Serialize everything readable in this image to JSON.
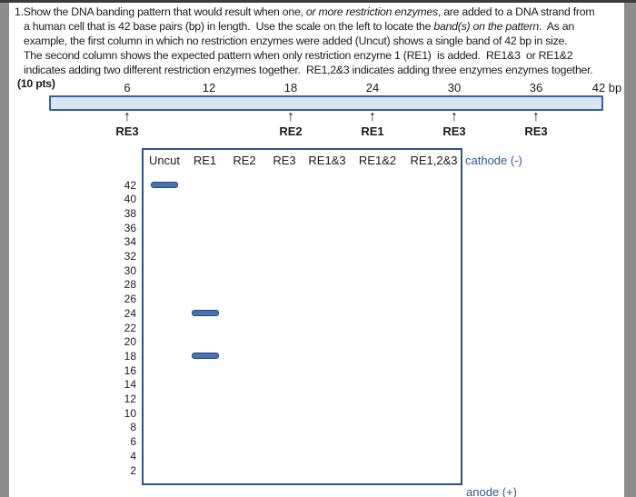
{
  "document": {
    "paragraph_lines": [
      {
        "segments": [
          {
            "text": "1.Show the DNA banding pattern that would result when one, "
          },
          {
            "text": "or more restriction enzymes",
            "italic": true
          },
          {
            "text": ", are added to a DNA strand from"
          }
        ]
      },
      {
        "segments": [
          {
            "text": "a human cell that is 42 base pairs (bp) in length.  Use the scale on the left to locate the "
          },
          {
            "text": "band(s) on the pattern",
            "italic": true
          },
          {
            "text": ".  As an"
          }
        ]
      },
      {
        "segments": [
          {
            "text": "example, the first column in which no restriction enzymes were added (Uncut) shows a single band of 42 bp in size."
          }
        ]
      },
      {
        "segments": [
          {
            "text": "The second column shows the expected pattern when only restriction enzyme 1 (RE1)  is added.  RE1&3  or RE1&2"
          }
        ]
      },
      {
        "segments": [
          {
            "text": "indicates adding two different restriction enzymes together.  RE1,2&3 indicates adding three enzymes enzymes together."
          }
        ]
      }
    ],
    "points_label": "(10 pts)"
  },
  "dna_map": {
    "total_bp": 42,
    "tick_labels": [
      {
        "bp": 6,
        "label": "6"
      },
      {
        "bp": 12,
        "label": "12"
      },
      {
        "bp": 18,
        "label": "18"
      },
      {
        "bp": 24,
        "label": "24"
      },
      {
        "bp": 30,
        "label": "30"
      },
      {
        "bp": 36,
        "label": "36"
      },
      {
        "bp": 42,
        "label": "42 bp"
      }
    ],
    "cut_sites": [
      {
        "bp": 6,
        "enzyme": "RE3"
      },
      {
        "bp": 18,
        "enzyme": "RE2"
      },
      {
        "bp": 24,
        "enzyme": "RE1"
      },
      {
        "bp": 30,
        "enzyme": "RE3"
      },
      {
        "bp": 36,
        "enzyme": "RE3"
      }
    ],
    "arrow_glyph": "↑"
  },
  "gel": {
    "cathode_label": "cathode (-)",
    "anode_label": "anode (+)",
    "ladder": [
      42,
      40,
      38,
      36,
      34,
      32,
      30,
      28,
      26,
      24,
      22,
      20,
      18,
      16,
      14,
      12,
      10,
      8,
      6,
      4,
      2
    ],
    "lanes": [
      {
        "label": "Uncut",
        "bands": [
          42
        ]
      },
      {
        "label": "RE1",
        "bands": [
          24,
          18
        ]
      },
      {
        "label": "RE2",
        "bands": []
      },
      {
        "label": "RE3",
        "bands": []
      },
      {
        "label": "RE1&3",
        "bands": []
      },
      {
        "label": "RE1&2",
        "bands": []
      },
      {
        "label": "RE1,2&3",
        "bands": []
      }
    ]
  },
  "colors": {
    "band_fill": "#4573ae",
    "band_border": "#27477b",
    "bar_fill": "#d9e6f3",
    "bar_border": "#37639b",
    "gel_border": "#2e5480",
    "electrode_text": "#2d5796",
    "viewer_margin": "#8d8d8d"
  }
}
